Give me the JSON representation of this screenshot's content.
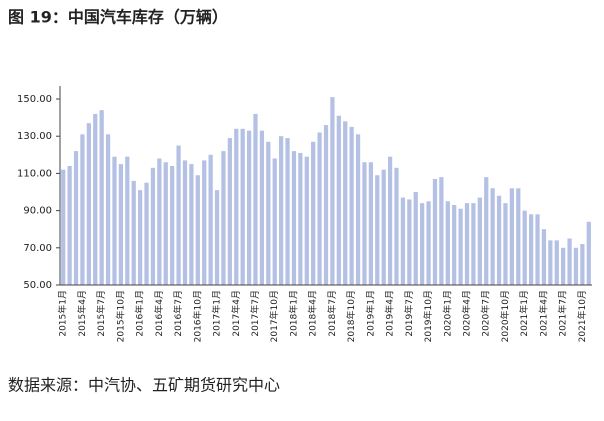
{
  "chart_data": {
    "type": "bar",
    "title": "图 19：中国汽车库存（万辆）",
    "source": "数据来源：中汽协、五矿期货研究中心",
    "categories": [
      "2015年1月",
      null,
      null,
      "2015年4月",
      null,
      null,
      "2015年7月",
      null,
      null,
      "2015年10月",
      null,
      null,
      "2016年1月",
      null,
      null,
      "2016年4月",
      null,
      null,
      "2016年7月",
      null,
      null,
      "2016年10月",
      null,
      null,
      "2017年1月",
      null,
      null,
      "2017年4月",
      null,
      null,
      "2017年7月",
      null,
      null,
      "2017年10月",
      null,
      null,
      "2018年1月",
      null,
      null,
      "2018年4月",
      null,
      null,
      "2018年7月",
      null,
      null,
      "2018年10月",
      null,
      null,
      "2019年1月",
      null,
      null,
      "2019年4月",
      null,
      null,
      "2019年7月",
      null,
      null,
      "2019年10月",
      null,
      null,
      "2020年1月",
      null,
      null,
      "2020年4月",
      null,
      null,
      "2020年7月",
      null,
      null,
      "2020年10月",
      null,
      null,
      "2021年1月",
      null,
      null,
      "2021年4月",
      null,
      null,
      "2021年7月",
      null,
      null,
      "2021年10月",
      null
    ],
    "values": [
      112,
      114,
      122,
      131,
      137,
      142,
      144,
      131,
      119,
      115,
      119,
      106,
      101,
      105,
      113,
      118,
      116,
      114,
      125,
      117,
      115,
      109,
      117,
      120,
      101,
      122,
      129,
      134,
      134,
      133,
      142,
      133,
      127,
      118,
      130,
      129,
      122,
      121,
      119,
      127,
      132,
      136,
      151,
      141,
      138,
      135,
      131,
      116,
      116,
      109,
      112,
      119,
      113,
      97,
      96,
      100,
      94,
      95,
      107,
      108,
      95,
      93,
      91,
      94,
      94,
      97,
      108,
      102,
      98,
      94,
      102,
      102,
      90,
      88,
      88,
      80,
      74,
      74,
      70,
      75,
      70,
      72,
      84
    ],
    "color": "#b4c0e4",
    "ylim": [
      50,
      157
    ],
    "yticks": [
      {
        "value": 50,
        "label": "50.00"
      },
      {
        "value": 70,
        "label": "70.00"
      },
      {
        "value": 90,
        "label": "90.00"
      },
      {
        "value": 110,
        "label": "110.00"
      },
      {
        "value": 130,
        "label": "130.00"
      },
      {
        "value": 150,
        "label": "150.00"
      }
    ],
    "grid": false
  }
}
